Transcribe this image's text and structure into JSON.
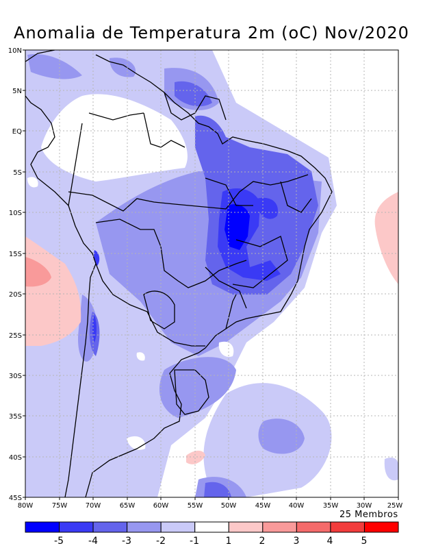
{
  "title": "Anomalia de Temperatura 2m (oC) Nov/2020",
  "members_note": "25 Membros",
  "lat_labels": [
    "10N",
    "5N",
    "EQ",
    "5S",
    "10S",
    "15S",
    "20S",
    "25S",
    "30S",
    "35S",
    "40S",
    "45S"
  ],
  "lon_labels": [
    "80W",
    "75W",
    "70W",
    "65W",
    "60W",
    "55W",
    "50W",
    "45W",
    "40W",
    "35W",
    "30W",
    "25W"
  ],
  "colorbar": {
    "colors": [
      "#0000ff",
      "#3a3af5",
      "#6464ec",
      "#9797f0",
      "#cacaf8",
      "#ffffff",
      "#fcc8c8",
      "#f99a9a",
      "#f56b6b",
      "#f23c3c",
      "#ff0000"
    ],
    "labels": [
      "-5",
      "-4",
      "-3",
      "-2",
      "-1",
      "1",
      "2",
      "3",
      "4",
      "5"
    ]
  },
  "palette": {
    "neg1": "#cacaf8",
    "neg2": "#9797f0",
    "neg3": "#6464ec",
    "neg4": "#3a3af5",
    "neg5": "#0000ff",
    "pos1": "#fcc8c8",
    "pos2": "#f99a9a"
  }
}
